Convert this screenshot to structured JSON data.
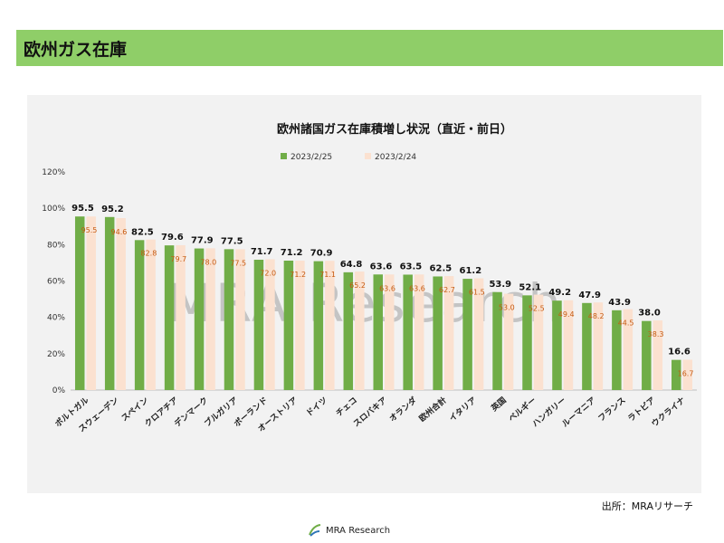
{
  "slide": {
    "title": "欧州ガス在庫"
  },
  "source": "出所：MRAリサーチ",
  "footer": {
    "logo_text": "MRA Research"
  },
  "watermark": "MRA Research",
  "colors": {
    "header_bg": "#8fce68",
    "series1": "#70ad47",
    "series2": "#fbe1d0",
    "label2": "#c55a11"
  },
  "chart_data": {
    "type": "bar",
    "title": "欧州諸国ガス在庫積増し状況（直近・前日）",
    "categories": [
      "ポルトガル",
      "スウェーデン",
      "スペイン",
      "クロアチア",
      "デンマーク",
      "ブルガリア",
      "ポーランド",
      "オーストリア",
      "ドイツ",
      "チェコ",
      "スロバキア",
      "オランダ",
      "欧州合計",
      "イタリア",
      "英国",
      "ベルギー",
      "ハンガリー",
      "ルーマニア",
      "フランス",
      "ラトビア",
      "ウクライナ"
    ],
    "series": [
      {
        "name": "2023/2/25",
        "values": [
          95.5,
          95.2,
          82.5,
          79.6,
          77.9,
          77.5,
          71.7,
          71.2,
          70.9,
          64.8,
          63.6,
          63.5,
          62.5,
          61.2,
          53.9,
          52.1,
          49.2,
          47.9,
          43.9,
          38.0,
          16.6
        ]
      },
      {
        "name": "2023/2/24",
        "values": [
          95.5,
          94.6,
          82.8,
          79.7,
          78.0,
          77.5,
          72.0,
          71.2,
          71.1,
          65.2,
          63.6,
          63.6,
          62.7,
          61.5,
          53.0,
          52.5,
          49.4,
          48.2,
          44.5,
          38.3,
          16.7
        ]
      }
    ],
    "yticks": [
      "0%",
      "20%",
      "40%",
      "60%",
      "80%",
      "100%",
      "120%"
    ],
    "ylim": [
      0,
      120
    ],
    "legend_position": "top",
    "grid": false
  }
}
